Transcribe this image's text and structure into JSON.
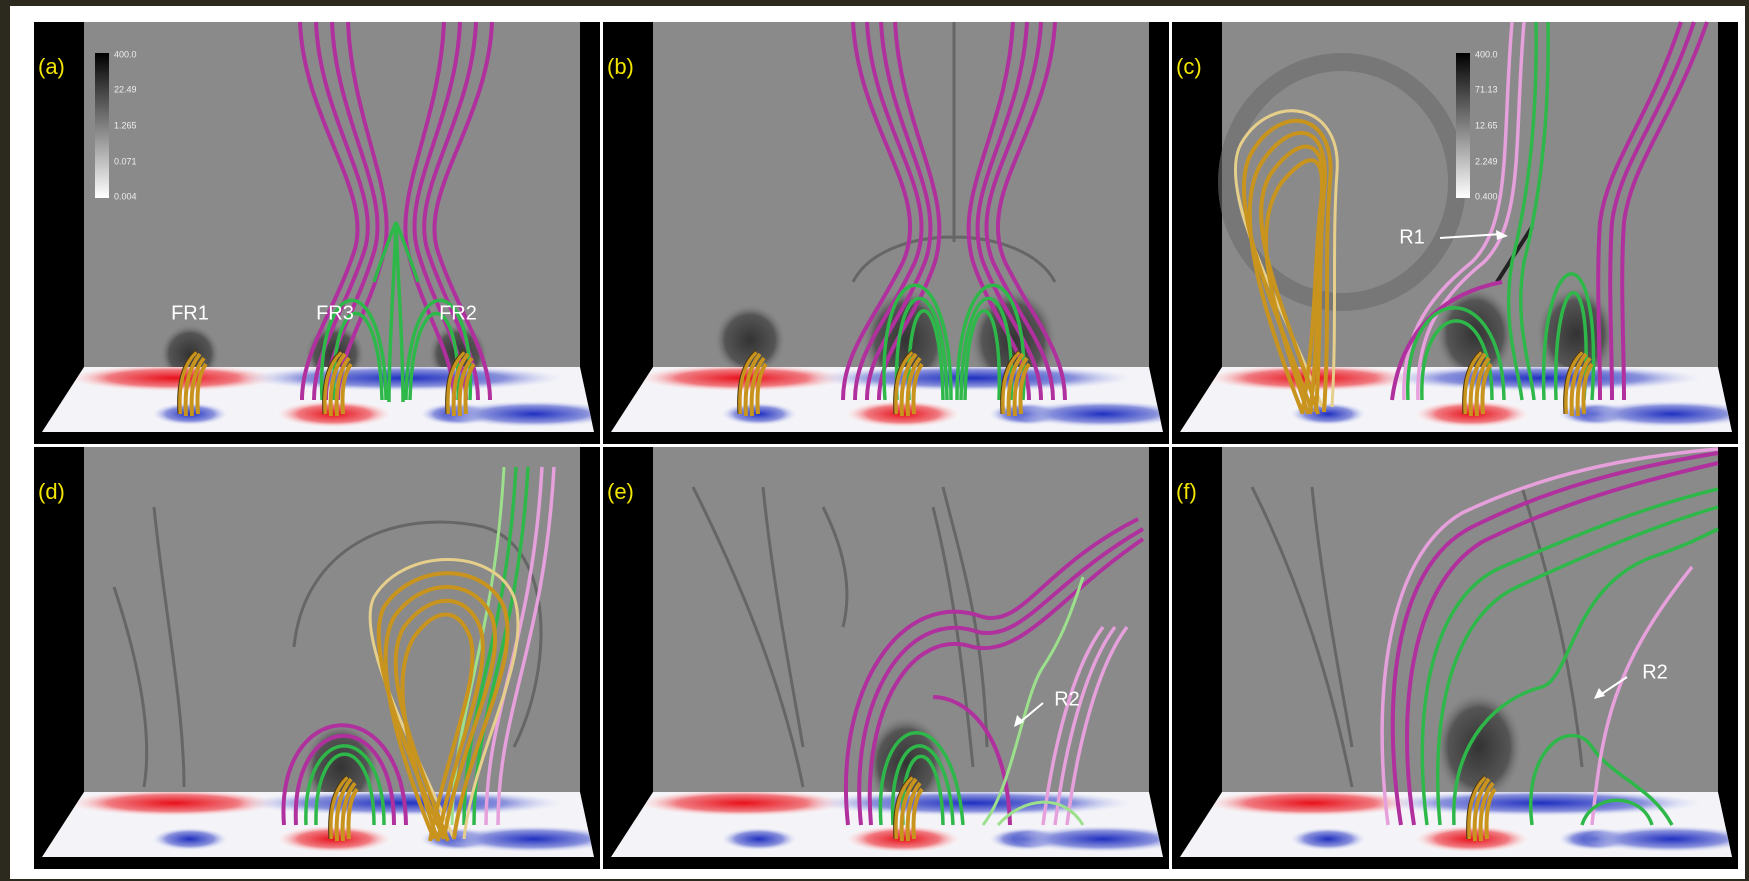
{
  "panels": [
    {
      "label": "(a)",
      "colorbar": [
        "400.0",
        "22.49",
        "1.265",
        "0.071",
        "0.004"
      ],
      "annotations": [
        "FR1",
        "FR3",
        "FR2"
      ]
    },
    {
      "label": "(b)"
    },
    {
      "label": "(c)",
      "colorbar": [
        "400.0",
        "71.13",
        "12.65",
        "2.249",
        "0.400"
      ],
      "annotations": [
        "R1"
      ]
    },
    {
      "label": "(d)"
    },
    {
      "label": "(e)",
      "annotations": [
        "R2"
      ]
    },
    {
      "label": "(f)",
      "annotations": [
        "R2"
      ]
    }
  ]
}
